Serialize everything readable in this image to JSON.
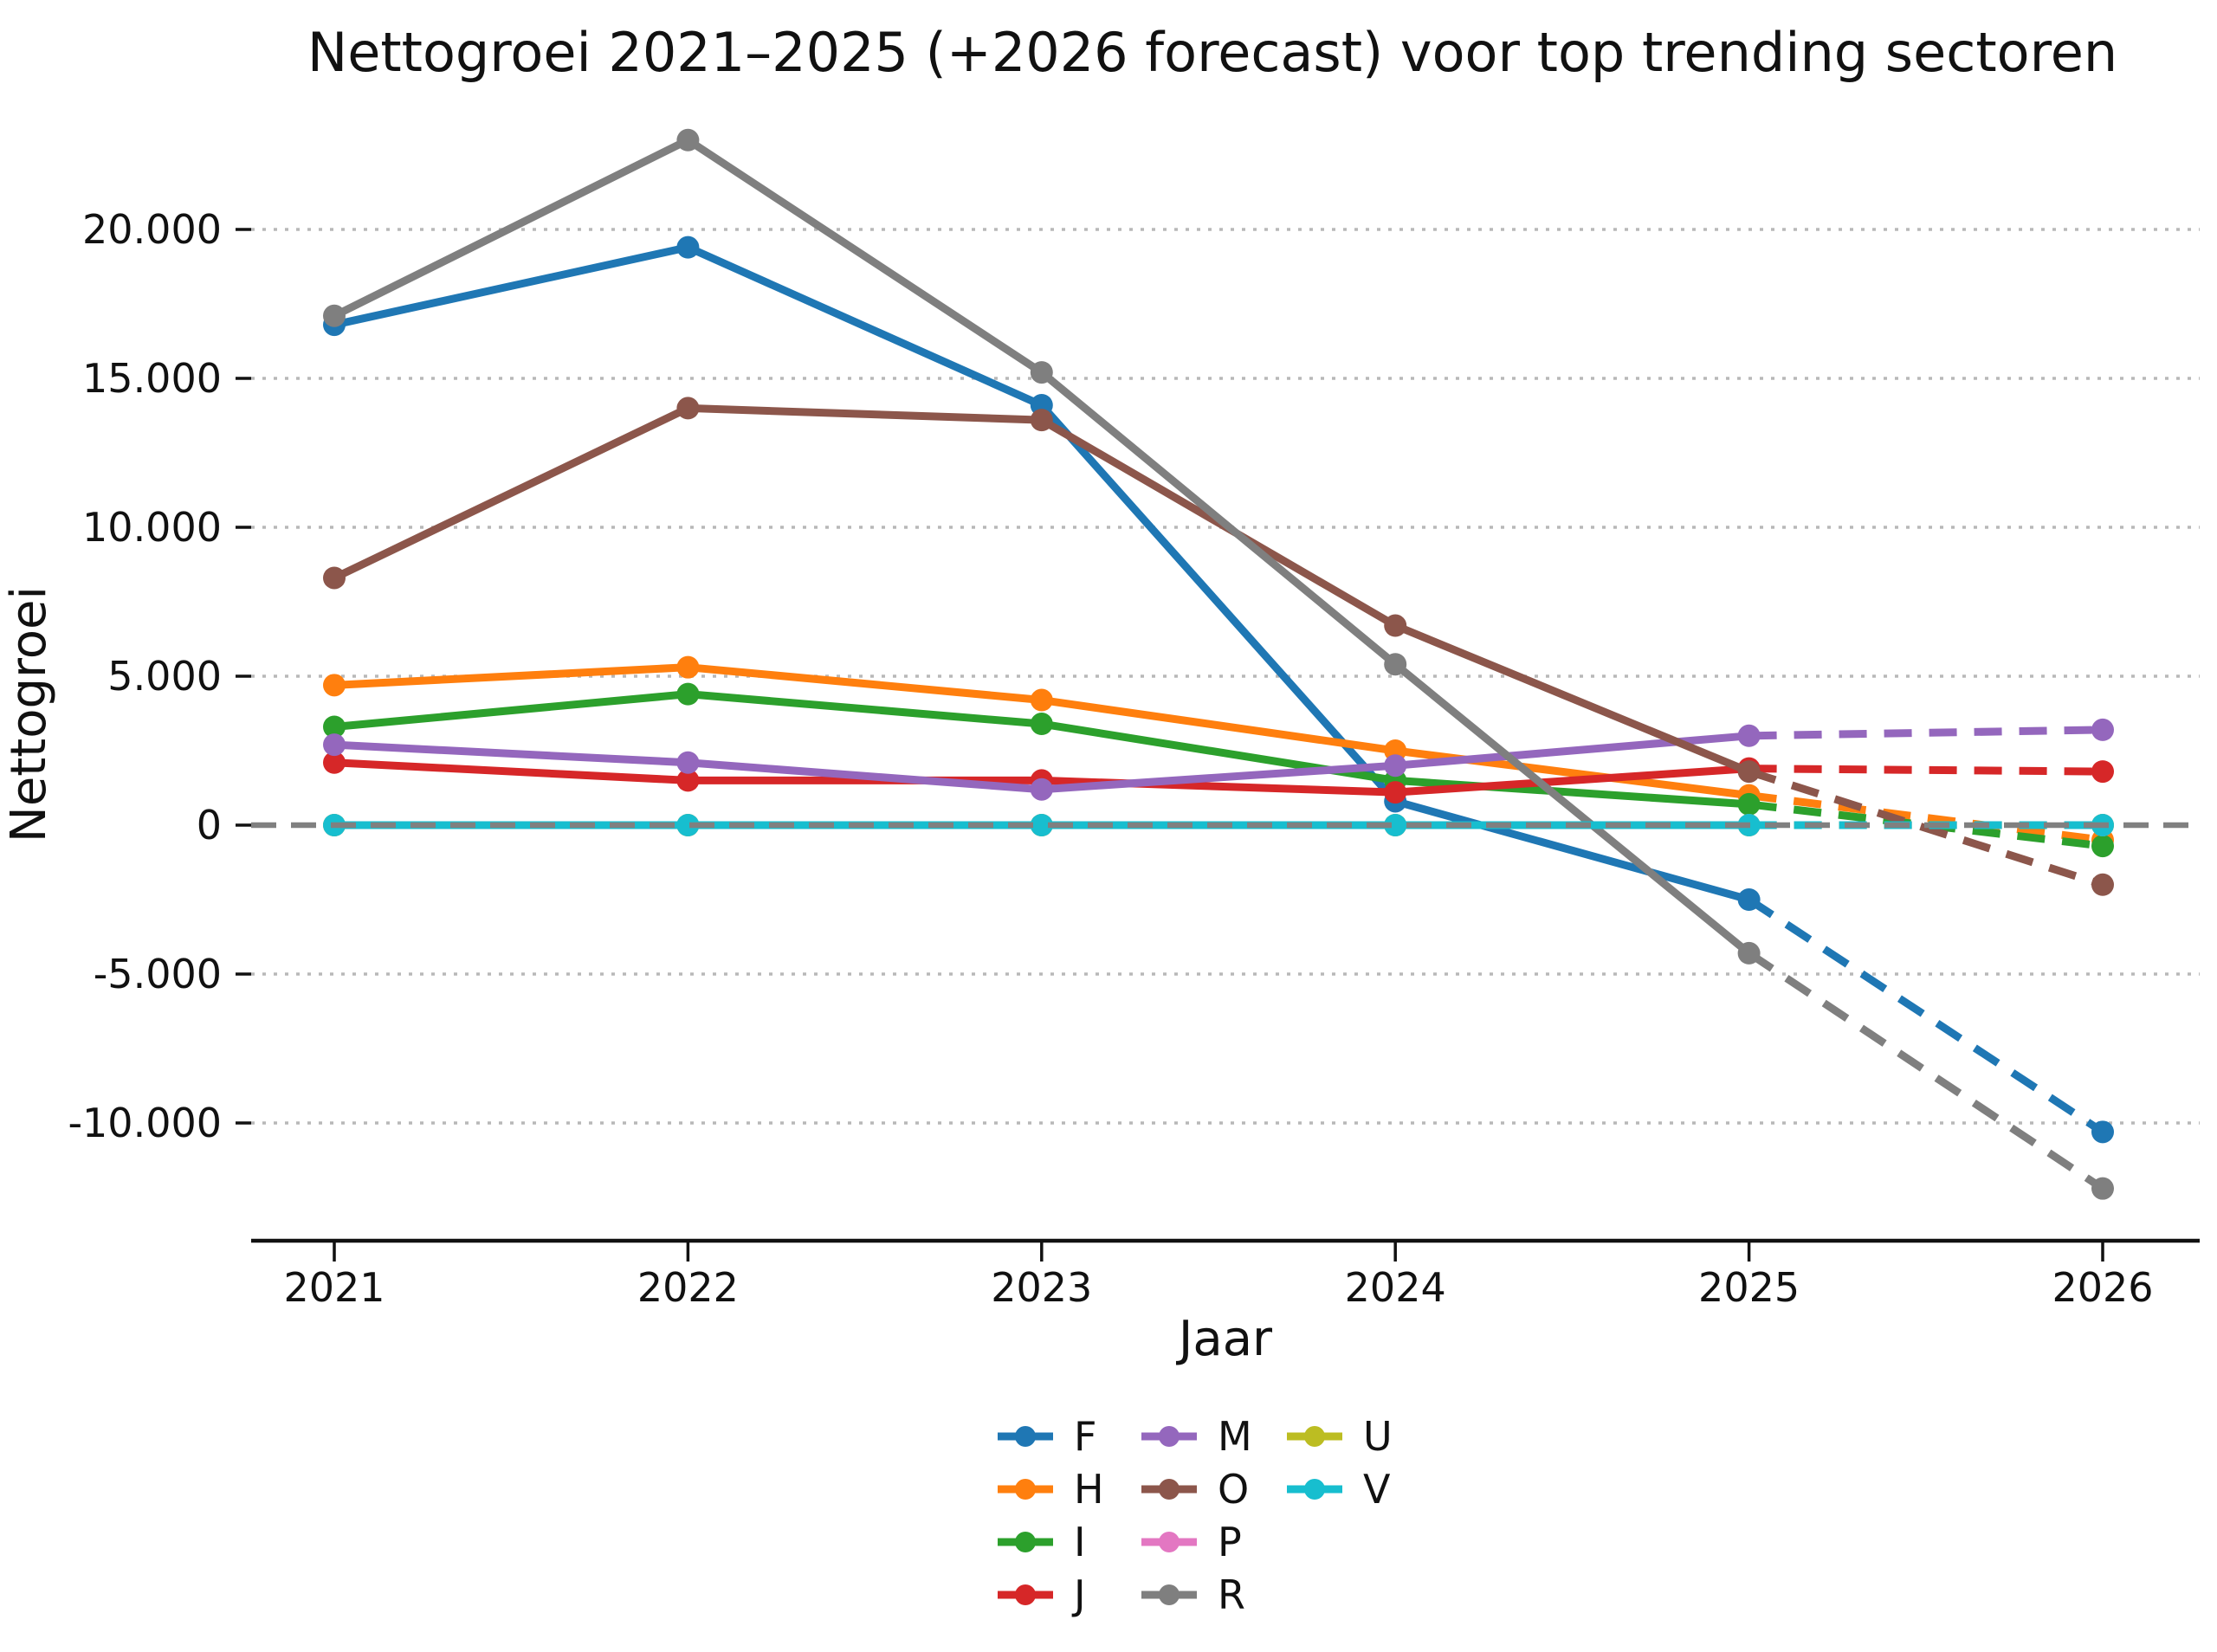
{
  "chart_data": {
    "type": "line",
    "title": "Nettogroei 2021–2025 (+2026 forecast) voor top trending sectoren",
    "xlabel": "Jaar",
    "ylabel": "Nettogroei",
    "x": [
      2021,
      2022,
      2023,
      2024,
      2025,
      2026
    ],
    "x_tick_labels": [
      "2021",
      "2022",
      "2023",
      "2024",
      "2025",
      "2026"
    ],
    "y_ticks": [
      {
        "value": 20000,
        "label": "20.000"
      },
      {
        "value": 15000,
        "label": "15.000"
      },
      {
        "value": 10000,
        "label": "10.000"
      },
      {
        "value": 5000,
        "label": "5.000"
      },
      {
        "value": 0,
        "label": "0"
      },
      {
        "value": -5000,
        "label": "-5.000"
      },
      {
        "value": -10000,
        "label": "-10.000"
      }
    ],
    "ylim": [
      -14000,
      25100
    ],
    "grid": "horizontal dotted",
    "grid_color": "#b8b8b8",
    "zero_line": {
      "value": 0,
      "style": "dashed",
      "color": "#808080"
    },
    "forecast_from_x": 2025,
    "forecast_style": "dashed",
    "legend_position": "below x-axis, 3 columns",
    "series": [
      {
        "name": "F",
        "color": "#1f77b4",
        "values": [
          16800,
          19400,
          14100,
          800,
          -2500,
          -10300
        ]
      },
      {
        "name": "H",
        "color": "#ff7f0e",
        "values": [
          4700,
          5300,
          4200,
          2500,
          1000,
          -500
        ]
      },
      {
        "name": "I",
        "color": "#2ca02c",
        "values": [
          3300,
          4400,
          3400,
          1500,
          700,
          -700
        ]
      },
      {
        "name": "J",
        "color": "#d62728",
        "values": [
          2100,
          1500,
          1500,
          1100,
          1900,
          1800
        ]
      },
      {
        "name": "M",
        "color": "#9467bd",
        "values": [
          2700,
          2100,
          1200,
          2000,
          3000,
          3200
        ]
      },
      {
        "name": "O",
        "color": "#8c564b",
        "values": [
          8300,
          14000,
          13600,
          6700,
          1800,
          -2000
        ]
      },
      {
        "name": "P",
        "color": "#e377c2",
        "values": [
          0,
          0,
          0,
          0,
          0,
          0
        ]
      },
      {
        "name": "R",
        "color": "#7f7f7f",
        "values": [
          17100,
          23000,
          15200,
          5400,
          -4300,
          -12200
        ]
      },
      {
        "name": "U",
        "color": "#bcbd22",
        "values": [
          0,
          0,
          0,
          0,
          0,
          0
        ]
      },
      {
        "name": "V",
        "color": "#17becf",
        "values": [
          0,
          0,
          0,
          0,
          0,
          0
        ]
      }
    ]
  }
}
